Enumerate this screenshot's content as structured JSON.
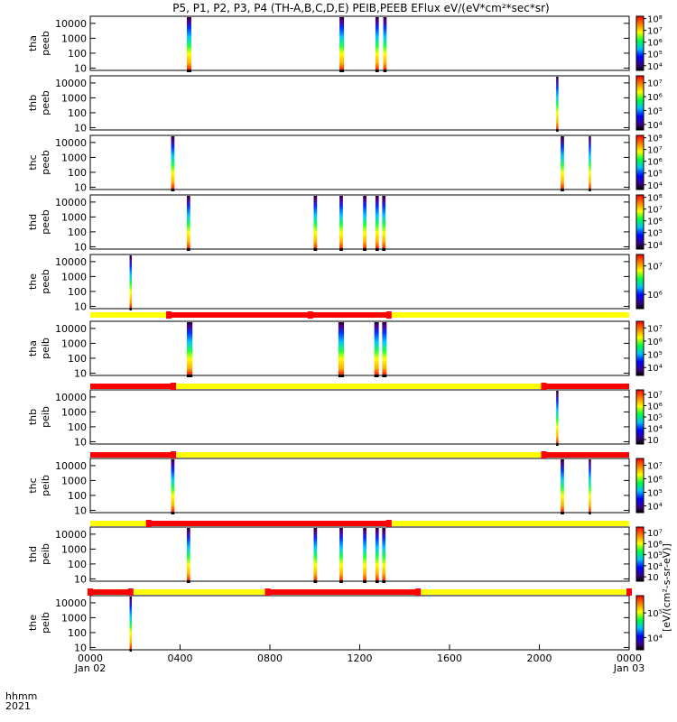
{
  "chart_data": {
    "type": "heatmap",
    "title": "P5, P1, P2, P3, P4 (TH-A,B,C,D,E) PEIB,PEEB EFlux eV/(eV*cm²*sec*sr)",
    "x_ticks": [
      "0000",
      "0400",
      "0800",
      "1200",
      "1600",
      "2000",
      "0000"
    ],
    "x_tick_hours": [
      0,
      4,
      8,
      12,
      16,
      20,
      24
    ],
    "x_date_labels": [
      {
        "hour": 0,
        "text": "Jan 02"
      },
      {
        "hour": 24,
        "text": "Jan 03"
      }
    ],
    "x_axis_left_labels": [
      "hhmm",
      "2021"
    ],
    "y_ticks": [
      "10",
      "100",
      "1000",
      "10000"
    ],
    "y_tick_values": [
      10,
      100,
      1000,
      10000
    ],
    "y_range": [
      7,
      30000
    ],
    "y_scale": "log",
    "colorbar_unit_label": "[eV/(cm²-s-sr-eV)]",
    "panels": [
      {
        "label1": "tha",
        "label2": "peeb",
        "cbar_ticks": [
          "10⁴",
          "10⁵",
          "10⁶",
          "10⁷",
          "10⁸"
        ],
        "cbar_min": 3.6,
        "cbar_max": 8.2,
        "bursts": [
          [
            4.3,
            4.5
          ],
          [
            11.1,
            11.3
          ],
          [
            12.7,
            12.85
          ],
          [
            13.05,
            13.2
          ]
        ]
      },
      {
        "label1": "thb",
        "label2": "peeb",
        "cbar_ticks": [
          "10⁴",
          "10⁵",
          "10⁶",
          "10⁷"
        ],
        "cbar_min": 3.6,
        "cbar_max": 7.5,
        "bursts": [
          [
            20.75,
            20.85
          ]
        ]
      },
      {
        "label1": "thc",
        "label2": "peeb",
        "cbar_ticks": [
          "10⁴",
          "10⁵",
          "10⁶",
          "10⁷",
          "10⁸"
        ],
        "cbar_min": 3.6,
        "cbar_max": 8.2,
        "bursts": [
          [
            3.6,
            3.75
          ],
          [
            20.95,
            21.1
          ],
          [
            22.2,
            22.3
          ]
        ]
      },
      {
        "label1": "thd",
        "label2": "peeb",
        "cbar_ticks": [
          "10⁴",
          "10⁵",
          "10⁶",
          "10⁷",
          "10⁸"
        ],
        "cbar_min": 3.6,
        "cbar_max": 8.2,
        "bursts": [
          [
            4.3,
            4.45
          ],
          [
            9.95,
            10.1
          ],
          [
            11.1,
            11.25
          ],
          [
            12.15,
            12.3
          ],
          [
            12.7,
            12.85
          ],
          [
            13.0,
            13.15
          ]
        ]
      },
      {
        "label1": "the",
        "label2": "peeb",
        "cbar_ticks": [
          "10⁶",
          "10⁷"
        ],
        "cbar_min": 5.5,
        "cbar_max": 7.4,
        "bursts": [
          [
            1.75,
            1.85
          ]
        ]
      },
      {
        "label1": "tha",
        "label2": "peib",
        "cbar_ticks": [
          "10⁴",
          "10⁵",
          "10⁶",
          "10⁷"
        ],
        "cbar_min": 3.4,
        "cbar_max": 7.5,
        "bursts": [
          [
            4.3,
            4.55
          ],
          [
            11.05,
            11.3
          ],
          [
            12.65,
            12.85
          ],
          [
            13.0,
            13.2
          ]
        ]
      },
      {
        "label1": "thb",
        "label2": "peib",
        "cbar_ticks": [
          "10⁳",
          "10⁴",
          "10⁵",
          "10⁶",
          "10⁷"
        ],
        "cbar_min": 2.6,
        "cbar_max": 7.4,
        "bursts": [
          [
            20.75,
            20.85
          ]
        ]
      },
      {
        "label1": "thc",
        "label2": "peib",
        "cbar_ticks": [
          "10⁴",
          "10⁵",
          "10⁶",
          "10⁷"
        ],
        "cbar_min": 3.5,
        "cbar_max": 7.5,
        "bursts": [
          [
            3.6,
            3.75
          ],
          [
            20.95,
            21.1
          ],
          [
            22.2,
            22.3
          ]
        ]
      },
      {
        "label1": "thd",
        "label2": "peib",
        "cbar_ticks": [
          "10⁳",
          "10⁴",
          "10⁵",
          "10⁶",
          "10⁷"
        ],
        "cbar_min": 2.6,
        "cbar_max": 7.5,
        "bursts": [
          [
            4.3,
            4.45
          ],
          [
            9.95,
            10.1
          ],
          [
            11.1,
            11.25
          ],
          [
            12.15,
            12.3
          ],
          [
            12.7,
            12.85
          ],
          [
            13.0,
            13.15
          ]
        ]
      },
      {
        "label1": "the",
        "label2": "peib",
        "cbar_ticks": [
          "10⁴",
          "10⁵"
        ],
        "cbar_min": 3.5,
        "cbar_max": 5.7,
        "bursts": [
          [
            1.75,
            1.85
          ]
        ]
      }
    ],
    "mode_bars": [
      {
        "after_panel": 4,
        "segments": [
          {
            "start": 0,
            "end": 3.5,
            "color": "yellow"
          },
          {
            "start": 3.5,
            "end": 13.3,
            "color": "red"
          },
          {
            "start": 13.3,
            "end": 24,
            "color": "yellow"
          }
        ],
        "markers": [
          3.5,
          9.8,
          13.3
        ]
      },
      {
        "after_panel": 5,
        "segments": [
          {
            "start": 0,
            "end": 3.7,
            "color": "red"
          },
          {
            "start": 3.7,
            "end": 20.2,
            "color": "yellow"
          },
          {
            "start": 20.2,
            "end": 24,
            "color": "red"
          }
        ],
        "markers": [
          3.7,
          20.2
        ]
      },
      {
        "after_panel": 6,
        "segments": [
          {
            "start": 0,
            "end": 3.7,
            "color": "red"
          },
          {
            "start": 3.7,
            "end": 20.2,
            "color": "yellow"
          },
          {
            "start": 20.2,
            "end": 24,
            "color": "red"
          }
        ],
        "markers": [
          3.7,
          20.2
        ]
      },
      {
        "after_panel": 7,
        "segments": [
          {
            "start": 0,
            "end": 2.6,
            "color": "yellow"
          },
          {
            "start": 2.6,
            "end": 13.3,
            "color": "red"
          },
          {
            "start": 13.3,
            "end": 24,
            "color": "yellow"
          }
        ],
        "markers": [
          2.6,
          13.3
        ]
      },
      {
        "after_panel": 8,
        "segments": [
          {
            "start": 0,
            "end": 1.8,
            "color": "red"
          },
          {
            "start": 1.8,
            "end": 7.9,
            "color": "yellow"
          },
          {
            "start": 7.9,
            "end": 14.6,
            "color": "red"
          },
          {
            "start": 14.6,
            "end": 24,
            "color": "yellow"
          }
        ],
        "markers": [
          0,
          1.8,
          7.9,
          14.6,
          24
        ]
      }
    ],
    "colors": {
      "red": "#ff0000",
      "yellow": "#ffff00"
    }
  }
}
